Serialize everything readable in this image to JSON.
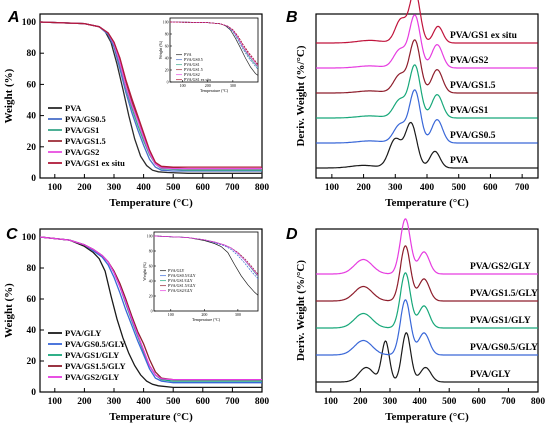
{
  "chart_data": [
    {
      "panel": "A",
      "type": "line",
      "xlabel": "Temperature (°C)",
      "ylabel": "Weight (%)",
      "xlim": [
        50,
        800
      ],
      "ylim": [
        0,
        100
      ],
      "xticks": [
        100,
        200,
        300,
        400,
        500,
        600,
        700,
        800
      ],
      "yticks": [
        0,
        20,
        40,
        60,
        80,
        100
      ],
      "legend_placement": "bottom-left",
      "series": [
        {
          "name": "PVA",
          "color": "#2b2b2b",
          "x": [
            50,
            200,
            250,
            270,
            290,
            310,
            330,
            350,
            370,
            390,
            410,
            430,
            450,
            480,
            550,
            800
          ],
          "y": [
            100,
            99,
            97,
            94,
            87,
            73,
            57,
            40,
            25,
            14,
            8,
            5,
            4,
            3.5,
            3,
            3
          ]
        },
        {
          "name": "PVA/GS0.5",
          "color": "#4a70c9",
          "x": [
            50,
            200,
            250,
            280,
            300,
            320,
            340,
            360,
            380,
            400,
            420,
            440,
            460,
            500,
            550,
            800
          ],
          "y": [
            100,
            99,
            97,
            92,
            84,
            70,
            55,
            42,
            31,
            21,
            12,
            7,
            5,
            4.5,
            4.5,
            4.5
          ]
        },
        {
          "name": "PVA/GS1",
          "color": "#3aa88a",
          "x": [
            50,
            200,
            250,
            280,
            300,
            320,
            340,
            360,
            380,
            400,
            420,
            440,
            460,
            500,
            550,
            800
          ],
          "y": [
            100,
            99,
            97,
            93,
            86,
            73,
            58,
            45,
            34,
            24,
            15,
            9,
            6,
            5.5,
            5,
            5
          ]
        },
        {
          "name": "PVA/GS1.5",
          "color": "#9e2f3a",
          "x": [
            50,
            200,
            250,
            280,
            300,
            320,
            340,
            360,
            380,
            400,
            420,
            440,
            460,
            500,
            550,
            800
          ],
          "y": [
            100,
            99,
            97,
            93,
            87,
            76,
            62,
            49,
            38,
            27,
            17,
            10,
            7,
            6.5,
            6,
            6
          ]
        },
        {
          "name": "PVA/GS2",
          "color": "#e84fe0",
          "x": [
            50,
            200,
            250,
            280,
            300,
            320,
            340,
            360,
            380,
            400,
            420,
            440,
            460,
            500,
            550,
            800
          ],
          "y": [
            100,
            99,
            97,
            93,
            86,
            74,
            59,
            47,
            37,
            26,
            16,
            9,
            6.5,
            6,
            6,
            6
          ]
        },
        {
          "name": "PVA/GS1 ex situ",
          "color": "#b01a3a",
          "x": [
            50,
            200,
            250,
            280,
            300,
            320,
            340,
            360,
            380,
            400,
            420,
            440,
            460,
            500,
            550,
            800
          ],
          "y": [
            100,
            99,
            97,
            93,
            87,
            77,
            63,
            51,
            40,
            29,
            18,
            10,
            7.5,
            7,
            7,
            7
          ]
        }
      ],
      "inset": {
        "xlim": [
          50,
          400
        ],
        "ylim": [
          0,
          100
        ],
        "xticks": [
          100,
          200,
          300
        ],
        "yticks": [
          0,
          20,
          40,
          60,
          80,
          100
        ],
        "xlabel": "Temperature (°C)",
        "ylabel": "Weight (%)",
        "legend": [
          "PVA",
          "PVA/GS0.5",
          "PVA/GS1",
          "PVA/GS1.5",
          "PVA/GS2",
          "PVA/GS1 ex situ"
        ]
      }
    },
    {
      "panel": "B",
      "type": "line",
      "xlabel": "Temperature (°C)",
      "ylabel": "Deriv. Weight (%/°C)",
      "xlim": [
        50,
        750
      ],
      "xticks": [
        100,
        200,
        300,
        400,
        500,
        600,
        700
      ],
      "series": [
        {
          "name": "PVA",
          "color": "#1a1a1a",
          "offset": 0
        },
        {
          "name": "PVA/GS0.5",
          "color": "#3a68d8",
          "offset": 1
        },
        {
          "name": "PVA/GS1",
          "color": "#18a87a",
          "offset": 2
        },
        {
          "name": "PVA/GS1.5",
          "color": "#8e1e2c",
          "offset": 3
        },
        {
          "name": "PVA/GS2",
          "color": "#e63de0",
          "offset": 4
        },
        {
          "name": "PVA/GS1 ex situ",
          "color": "#c0143c",
          "offset": 5
        }
      ]
    },
    {
      "panel": "C",
      "type": "line",
      "xlabel": "Temperature (°C)",
      "ylabel": "Weight (%)",
      "xlim": [
        50,
        800
      ],
      "ylim": [
        0,
        100
      ],
      "xticks": [
        100,
        200,
        300,
        400,
        500,
        600,
        700,
        800
      ],
      "yticks": [
        0,
        20,
        40,
        60,
        80,
        100
      ],
      "legend_placement": "bottom-left",
      "series": [
        {
          "name": "PVA/GLY",
          "color": "#1a1a1a",
          "x": [
            50,
            150,
            200,
            230,
            250,
            270,
            290,
            310,
            330,
            350,
            370,
            390,
            410,
            430,
            450,
            500,
            800
          ],
          "y": [
            100,
            98,
            94,
            90,
            86,
            78,
            62,
            47,
            35,
            25,
            17,
            11,
            7,
            5,
            4,
            3,
            3
          ]
        },
        {
          "name": "PVA/GS0.5/GLY",
          "color": "#3a68d8",
          "x": [
            50,
            150,
            200,
            230,
            260,
            280,
            300,
            320,
            340,
            360,
            380,
            400,
            420,
            440,
            460,
            500,
            800
          ],
          "y": [
            100,
            98,
            95,
            91,
            87,
            82,
            74,
            64,
            53,
            43,
            33,
            24,
            15,
            9,
            7,
            6,
            6
          ]
        },
        {
          "name": "PVA/GS1/GLY",
          "color": "#18a87a",
          "x": [
            50,
            150,
            200,
            230,
            260,
            280,
            300,
            320,
            340,
            360,
            380,
            400,
            420,
            440,
            460,
            500,
            800
          ],
          "y": [
            100,
            98,
            95,
            92,
            88,
            84,
            77,
            68,
            57,
            46,
            36,
            26,
            17,
            11,
            8,
            7,
            7
          ]
        },
        {
          "name": "PVA/GS1.5/GLY",
          "color": "#8e1e2c",
          "x": [
            50,
            150,
            200,
            230,
            260,
            280,
            300,
            320,
            340,
            360,
            380,
            400,
            420,
            440,
            460,
            500,
            800
          ],
          "y": [
            100,
            98,
            95,
            92,
            88,
            84,
            78,
            70,
            60,
            49,
            39,
            31,
            21,
            13,
            9,
            8,
            8
          ]
        },
        {
          "name": "PVA/GS2/GLY",
          "color": "#e63de0",
          "x": [
            50,
            150,
            200,
            230,
            260,
            280,
            300,
            320,
            340,
            360,
            380,
            400,
            420,
            440,
            460,
            500,
            800
          ],
          "y": [
            100,
            98,
            95,
            92,
            88,
            84,
            77,
            68,
            58,
            47,
            37,
            27,
            17,
            11,
            8.5,
            8,
            8
          ]
        }
      ],
      "inset": {
        "xlim": [
          50,
          360
        ],
        "ylim": [
          0,
          100
        ],
        "xticks": [
          100,
          200,
          300
        ],
        "yticks": [
          0,
          20,
          40,
          60,
          80,
          100
        ],
        "xlabel": "Temperature (°C)",
        "ylabel": "Weight (%)",
        "legend": [
          "PVA/GLY",
          "PVA/GS0.5/GLY",
          "PVA/GS1/GLY",
          "PVA/GS1.5/GLY",
          "PVA/GS2/GLY"
        ]
      }
    },
    {
      "panel": "D",
      "type": "line",
      "xlabel": "Temperature (°C)",
      "ylabel": "Deriv. Weight (%/°C)",
      "xlim": [
        50,
        800
      ],
      "xticks": [
        100,
        200,
        300,
        400,
        500,
        600,
        700,
        800
      ],
      "series": [
        {
          "name": "PVA/GLY",
          "color": "#1a1a1a",
          "offset": 0
        },
        {
          "name": "PVA/GS0.5/GLY",
          "color": "#3a68d8",
          "offset": 1
        },
        {
          "name": "PVA/GS1/GLY",
          "color": "#18a87a",
          "offset": 2
        },
        {
          "name": "PVA/GS1.5/GLY",
          "color": "#8e1e2c",
          "offset": 3
        },
        {
          "name": "PVA/GS2/GLY",
          "color": "#e63de0",
          "offset": 4
        }
      ]
    }
  ]
}
